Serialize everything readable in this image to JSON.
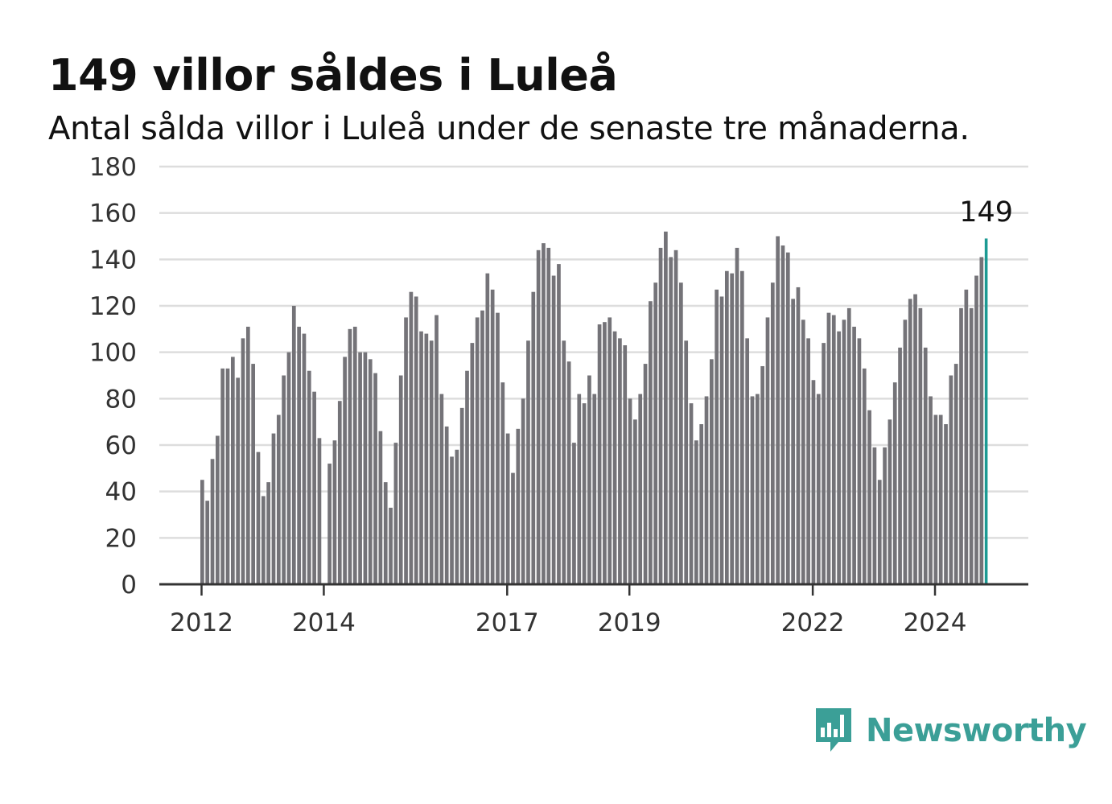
{
  "title": "149 villor såldes i Luleå",
  "subtitle": "Antal sålda villor i Luleå under de senaste tre månaderna.",
  "brand": {
    "name": "Newsworthy",
    "color": "#3b9f97",
    "icon": "newsworthy-logo-icon"
  },
  "colors": {
    "bar": "#747378",
    "highlight": "#1c9a93",
    "grid": "#dddddd",
    "axis": "#333333"
  },
  "chart_data": {
    "type": "bar",
    "x_start": "2012-01",
    "x_tick_labels": [
      "2012",
      "2014",
      "2017",
      "2019",
      "2022",
      "2024"
    ],
    "ylim": [
      0,
      180
    ],
    "y_ticks": [
      0,
      20,
      40,
      60,
      80,
      100,
      120,
      140,
      160,
      180
    ],
    "grid": true,
    "values": [
      45,
      36,
      54,
      64,
      93,
      93,
      98,
      89,
      106,
      111,
      95,
      57,
      38,
      44,
      65,
      73,
      90,
      100,
      120,
      111,
      108,
      92,
      83,
      63,
      0,
      52,
      62,
      79,
      98,
      110,
      111,
      100,
      100,
      97,
      91,
      66,
      44,
      33,
      61,
      90,
      115,
      126,
      124,
      109,
      108,
      105,
      116,
      82,
      68,
      55,
      58,
      76,
      92,
      104,
      115,
      118,
      134,
      127,
      117,
      87,
      65,
      48,
      67,
      80,
      105,
      126,
      144,
      147,
      145,
      133,
      138,
      105,
      96,
      61,
      82,
      78,
      90,
      82,
      112,
      113,
      115,
      109,
      106,
      103,
      80,
      71,
      82,
      95,
      122,
      130,
      145,
      152,
      141,
      144,
      130,
      105,
      78,
      62,
      69,
      81,
      97,
      127,
      124,
      135,
      134,
      145,
      135,
      106,
      81,
      82,
      94,
      115,
      130,
      150,
      146,
      143,
      123,
      128,
      114,
      106,
      88,
      82,
      104,
      117,
      116,
      109,
      114,
      119,
      111,
      106,
      93,
      75,
      59,
      45,
      59,
      71,
      87,
      102,
      114,
      123,
      125,
      119,
      102,
      81,
      73,
      73,
      69,
      90,
      95,
      119,
      127,
      119,
      133,
      141,
      149
    ],
    "highlight_last": true,
    "annotation": "149"
  }
}
